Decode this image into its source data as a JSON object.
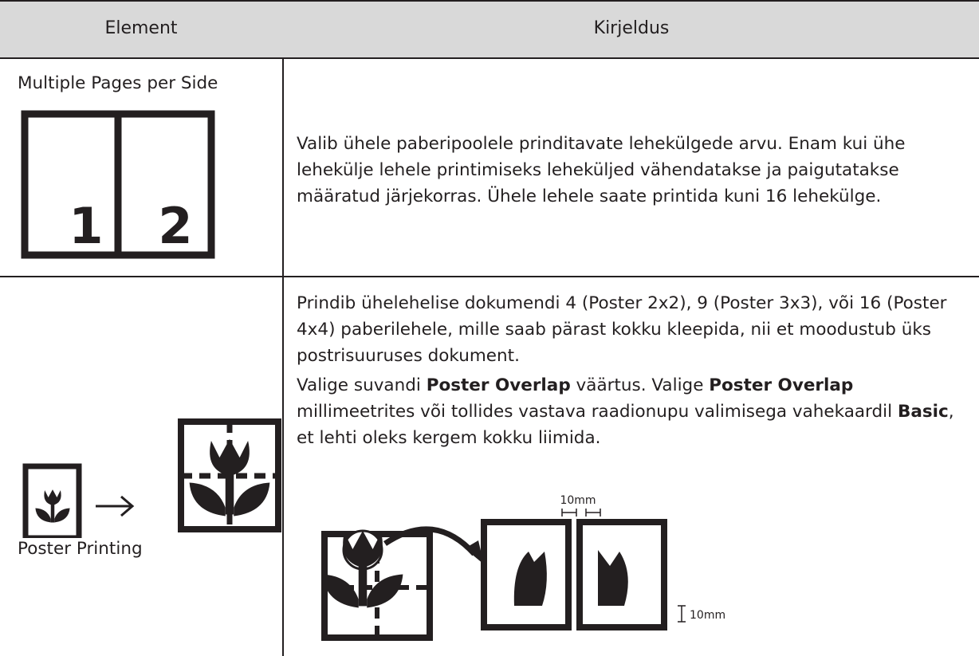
{
  "table": {
    "header": [
      "Element",
      "Kirjeldus"
    ],
    "rows": [
      {
        "element": "Multiple Pages per Side",
        "icon_labels": [
          "1",
          "2"
        ],
        "description": [
          "Valib ühele paberipoolele prinditavate lehekülgede arvu. Enam kui ühe lehekülje lehele printimiseks leheküljed vähendatakse ja paigutatakse määratud järjekorras. Ühele lehele saate printida kuni 16 lehekülge."
        ]
      },
      {
        "element": "Poster Printing",
        "description": [
          "Prindib ühelehelise dokumendi 4 (Poster 2x2), 9 (Poster 3x3), või 16 (Poster 4x4) paberilehele, mille saab pärast kokku kleepida, nii et moodustub üks postrisuuruses dokument.",
          [
            "Valige suvandi ",
            "Poster Overlap",
            " väärtus. Valige ",
            "Poster Overlap",
            " millimeetrites või tollides vastava raadionupu valimisega vahekaardil ",
            "Basic",
            ", et lehti oleks kergem kokku liimida."
          ]
        ],
        "diagram_labels": [
          "10mm",
          "10mm"
        ]
      }
    ]
  }
}
